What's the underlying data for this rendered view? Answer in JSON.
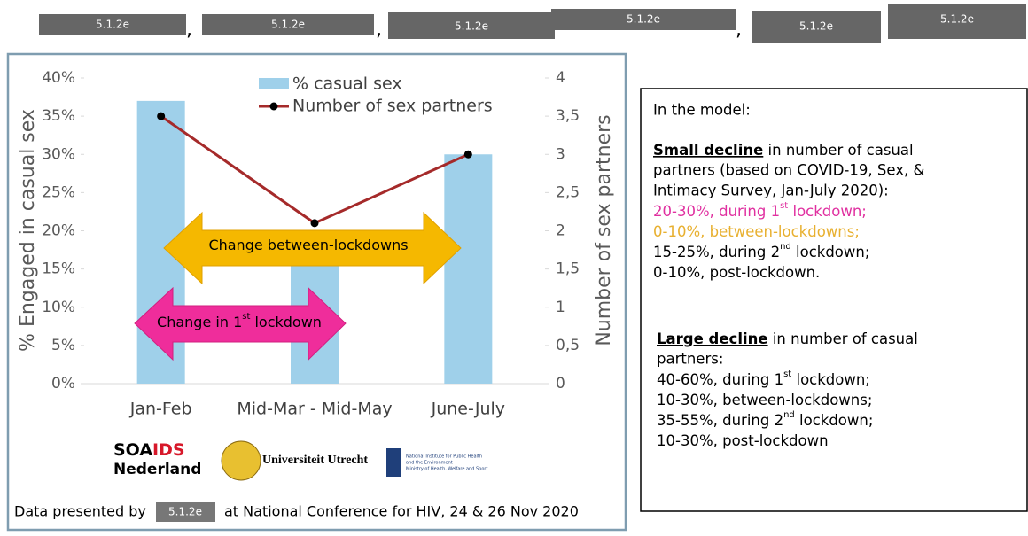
{
  "header": {
    "redactions": [
      "5.1.2e",
      "5.1.2e",
      "5.1.2e",
      "5.1.2e",
      "5.1.2e",
      "5.1.2e"
    ],
    "separators": [
      ",",
      ",",
      ","
    ]
  },
  "chart_data": {
    "type": "bar_line",
    "categories": [
      "Jan-Feb",
      "Mid-Mar - Mid-May",
      "June-July"
    ],
    "series": [
      {
        "name": "% casual sex",
        "color": "#9fd0ea",
        "values": [
          37,
          17,
          30
        ]
      },
      {
        "name": "Number of sex partners",
        "color": "#a52a2a",
        "axis": "y2",
        "values": [
          3.5,
          2.1,
          3.0
        ]
      }
    ],
    "y_label": "% Engaged in casual sex",
    "y2_label": "Number of sex partners",
    "ylim": [
      0,
      40
    ],
    "yticks": [
      {
        "value": 0,
        "label": "0%"
      },
      {
        "value": 5,
        "label": "5%"
      },
      {
        "value": 10,
        "label": "10%"
      },
      {
        "value": 15,
        "label": "15%"
      },
      {
        "value": 20,
        "label": "20%"
      },
      {
        "value": 25,
        "label": "25%"
      },
      {
        "value": 30,
        "label": "30%"
      },
      {
        "value": 35,
        "label": "35%"
      },
      {
        "value": 40,
        "label": "40%"
      }
    ],
    "y2lim": [
      0,
      4
    ],
    "y2ticks": [
      0,
      {
        "value": 0.5,
        "label": "0,5"
      },
      1,
      {
        "value": 1.5,
        "label": "1,5"
      },
      2,
      {
        "value": 2.5,
        "label": "2,5"
      },
      3,
      {
        "value": 3.5,
        "label": "3,5"
      },
      4
    ],
    "grid": false,
    "legend": "top-right",
    "annotations": [
      [
        "Change between-lockdowns"
      ],
      [
        "Change in 1",
        "st",
        " lockdown"
      ]
    ]
  },
  "logos": {
    "soaids": [
      "SOA",
      "IDS",
      "Nederland"
    ],
    "utrecht": "Universiteit Utrecht",
    "rivm": [
      "National Institute for Public Health",
      "and the Environment",
      "Ministry of Health, Welfare and Sport"
    ]
  },
  "footer": [
    "Data presented by",
    "5.1.2e",
    "at National Conference for HIV, 24 & 26 Nov 2020"
  ],
  "model_box": {
    "intro": "In the model:",
    "small": {
      "heading": "Small decline",
      "desc": [
        " in number of casual",
        "partners (based on COVID-19, Sex, &",
        "Intimacy Survey, Jan-July 2020):"
      ],
      "items": [
        [
          "20-30%, during 1",
          "st",
          " lockdown;"
        ],
        [
          "0-10%, between-lockdowns;"
        ],
        [
          "15-25%, during 2",
          "nd",
          " lockdown;"
        ],
        [
          "0-10%, post-lockdown."
        ]
      ]
    },
    "large": {
      "heading": "Large decline",
      "desc": [
        " in number of casual",
        "partners:"
      ],
      "items": [
        [
          "40-60%, during 1",
          "st",
          " lockdown;"
        ],
        [
          "10-30%, between-lockdowns;"
        ],
        [
          "35-55%, during 2",
          "nd",
          " lockdown;"
        ],
        [
          "10-30%, post-lockdown"
        ]
      ]
    }
  }
}
